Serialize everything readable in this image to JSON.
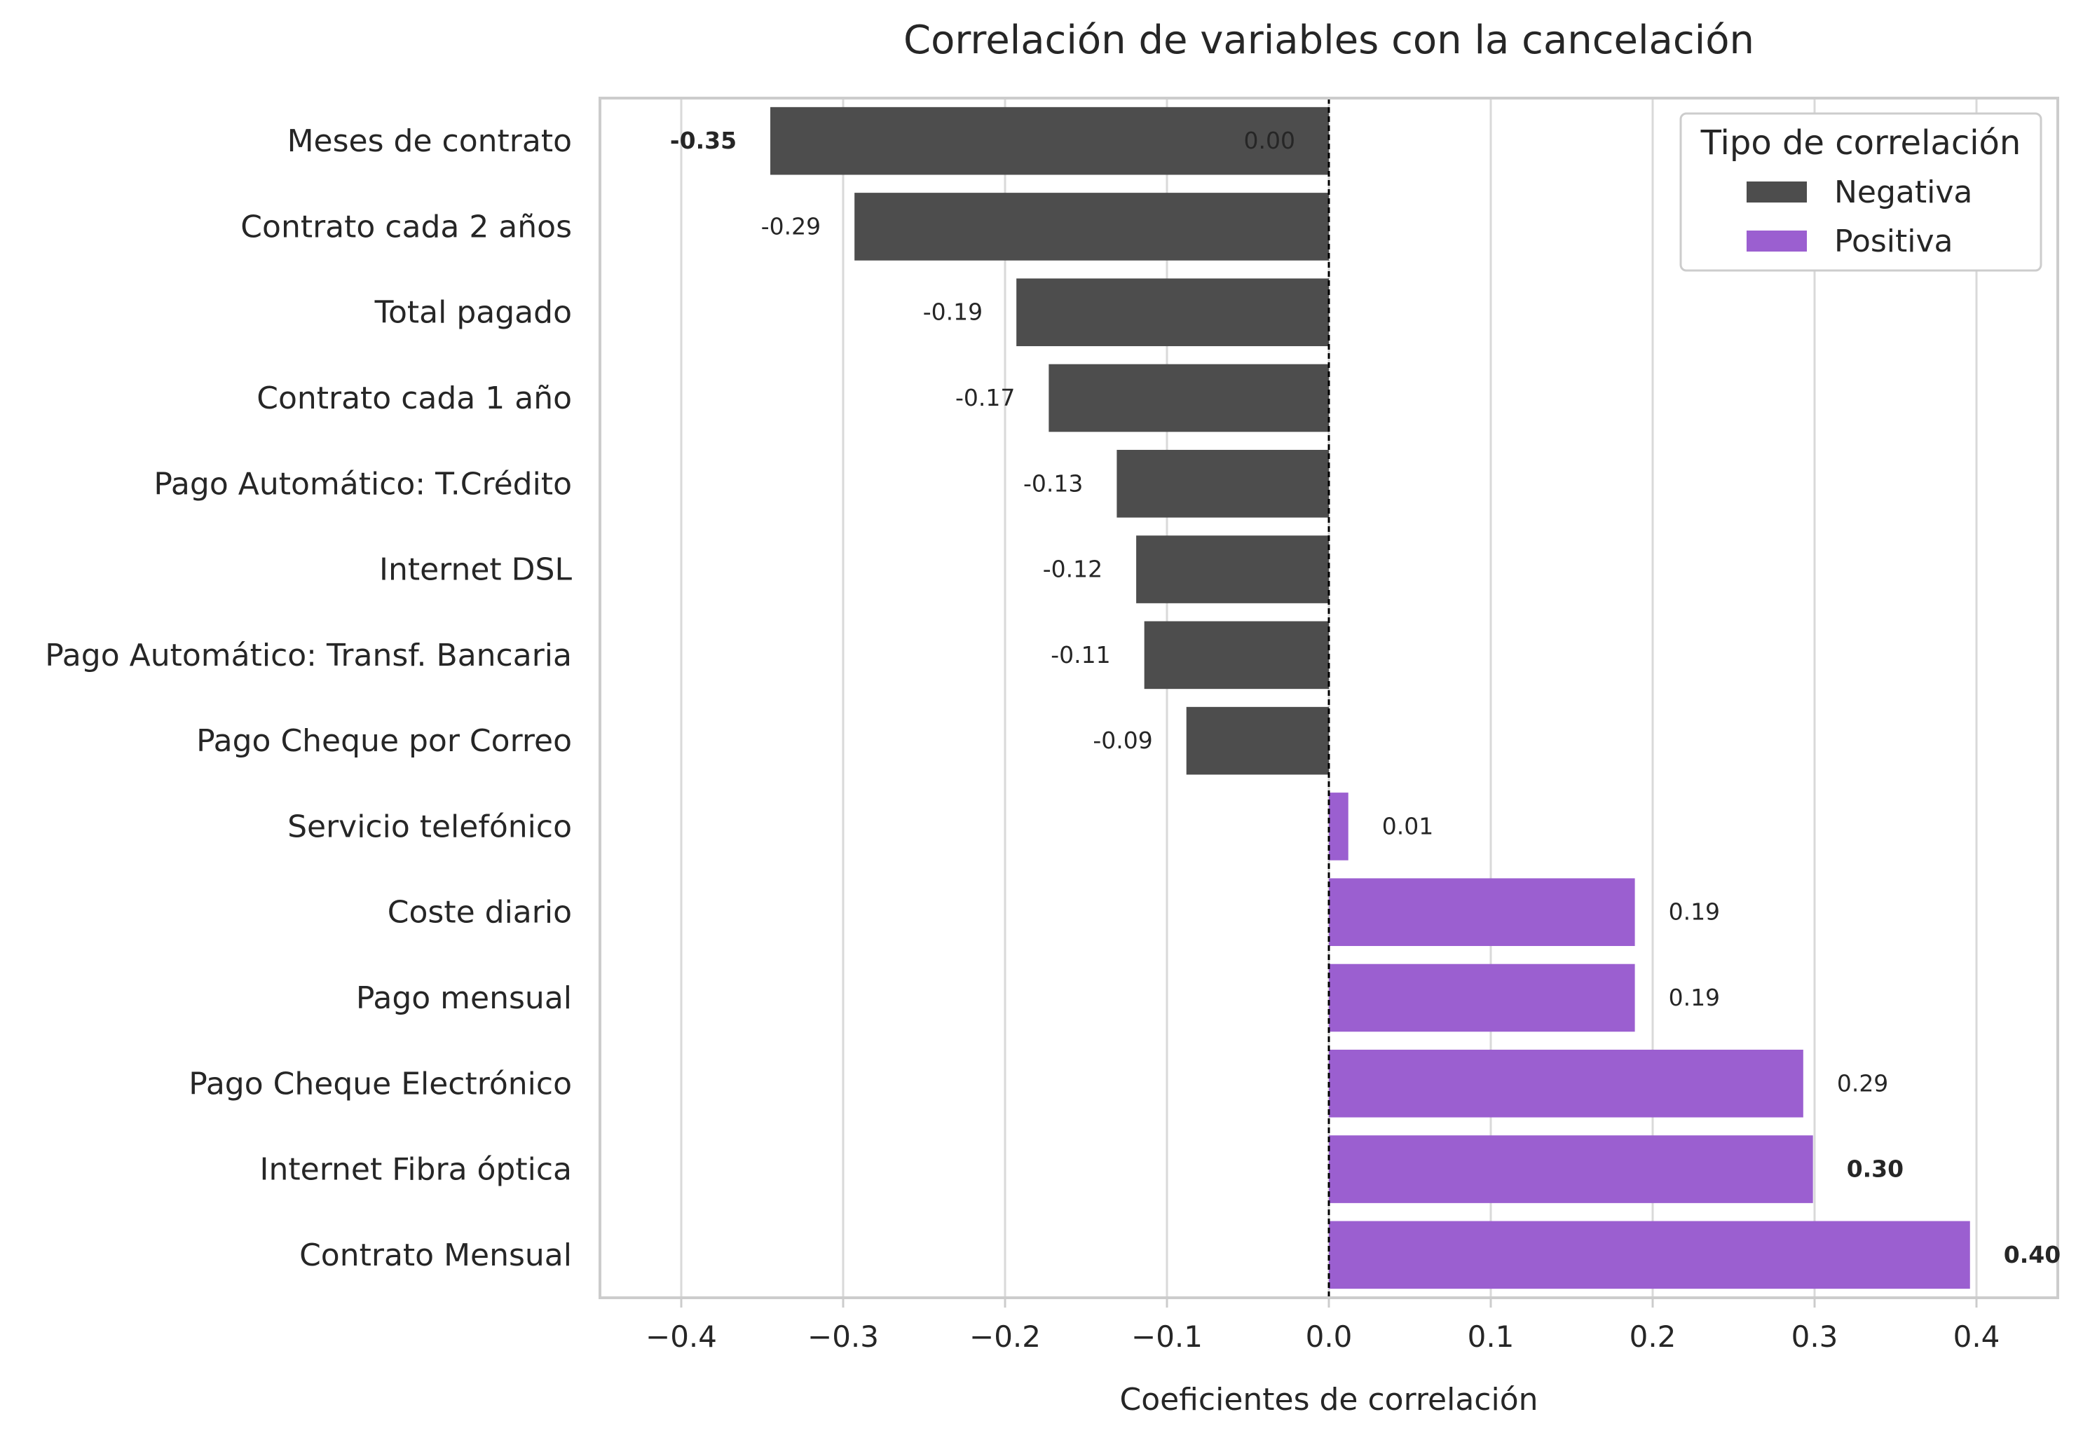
{
  "chart_data": {
    "type": "bar",
    "orientation": "horizontal",
    "title": "Correlación de variables con la cancelación",
    "xlabel": "Coeficientes de correlación",
    "ylabel": "",
    "xlim": [
      -0.4,
      0.4
    ],
    "xticks": [
      "−0.4",
      "−0.3",
      "−0.2",
      "−0.1",
      "0.0",
      "0.1",
      "0.2",
      "0.3",
      "0.4"
    ],
    "grid": "vertical",
    "reference_line": "x = 0 (dashed)",
    "categories": [
      "Meses de contrato",
      "Contrato cada 2 años",
      "Total pagado",
      "Contrato cada 1 año",
      "Pago Automático: T.Crédito",
      "Internet DSL",
      "Pago Automático: Transf. Bancaria",
      "Pago Cheque por Correo",
      "Servicio telefónico",
      "Coste diario",
      "Pago mensual",
      "Pago Cheque Electrónico",
      "Internet Fibra óptica",
      "Contrato Mensual"
    ],
    "values": [
      -0.345,
      -0.293,
      -0.193,
      -0.173,
      -0.131,
      -0.119,
      -0.114,
      -0.088,
      0.012,
      0.189,
      0.189,
      0.293,
      0.299,
      0.396
    ],
    "data_labels": [
      "-0.35",
      "-0.29",
      "-0.19",
      "-0.17",
      "-0.13",
      "-0.12",
      "-0.11",
      "-0.09",
      "0.01",
      "0.19",
      "0.19",
      "0.29",
      "0.30",
      "0.40"
    ],
    "bold_labels": [
      true,
      false,
      false,
      false,
      false,
      false,
      false,
      false,
      false,
      false,
      false,
      false,
      true,
      true
    ],
    "extra_label": "0.00",
    "legend": {
      "title": "Tipo de correlación",
      "position": "top-right",
      "entries": [
        {
          "name": "Negativa",
          "color": "#4d4d4d"
        },
        {
          "name": "Positiva",
          "color": "#9b5fd0"
        }
      ]
    },
    "colors": {
      "negative": "#4d4d4d",
      "positive": "#9b5fd0",
      "grid": "#d9d9d9",
      "frame": "#cccccc"
    }
  }
}
